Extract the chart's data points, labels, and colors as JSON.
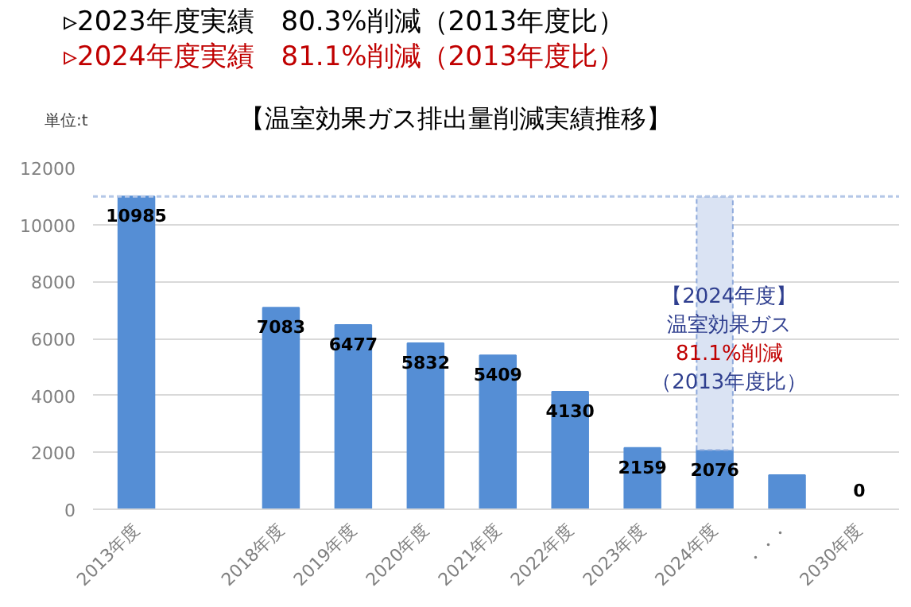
{
  "chart_data": {
    "type": "bar",
    "title": "【温室効果ガス排出量削減実績推移】",
    "ylabel": "単位:t",
    "categories": [
      "2013年度",
      null,
      "2018年度",
      "2019年度",
      "2020年度",
      "2021年度",
      "2022年度",
      "2023年度",
      "2024年度",
      "・・・",
      "2030年度"
    ],
    "stacked": true,
    "series": [
      {
        "color": "#558ed5",
        "values": [
          10985,
          null,
          7083,
          6477,
          5832,
          5409,
          4130,
          2159,
          2076,
          1200,
          0
        ],
        "value_labels": [
          "10985",
          null,
          "7083",
          "6477",
          "5832",
          "5409",
          "4130",
          "2159",
          "2076",
          null,
          "0"
        ]
      },
      {
        "color": "#dae3f3",
        "line_style": "dashed",
        "values": [
          null,
          null,
          null,
          null,
          null,
          null,
          null,
          null,
          8900,
          null,
          null
        ]
      }
    ],
    "ylim": [
      0,
      12000
    ],
    "yticks": [
      0,
      2000,
      4000,
      6000,
      8000,
      10000,
      12000
    ],
    "grid": "y",
    "ref_lines": [
      {
        "axis": "y",
        "value": 10985,
        "color": "#b4c7e7",
        "line_style": "dashed"
      }
    ],
    "annotations": [
      "▹2023年度実績　80.3%削減（2013年度比）",
      "▹2024年度実績　81.1%削減（2013年度比）",
      "【2024年度】",
      "温室効果ガス",
      "81.1%削減",
      "（2013年度比）"
    ]
  }
}
